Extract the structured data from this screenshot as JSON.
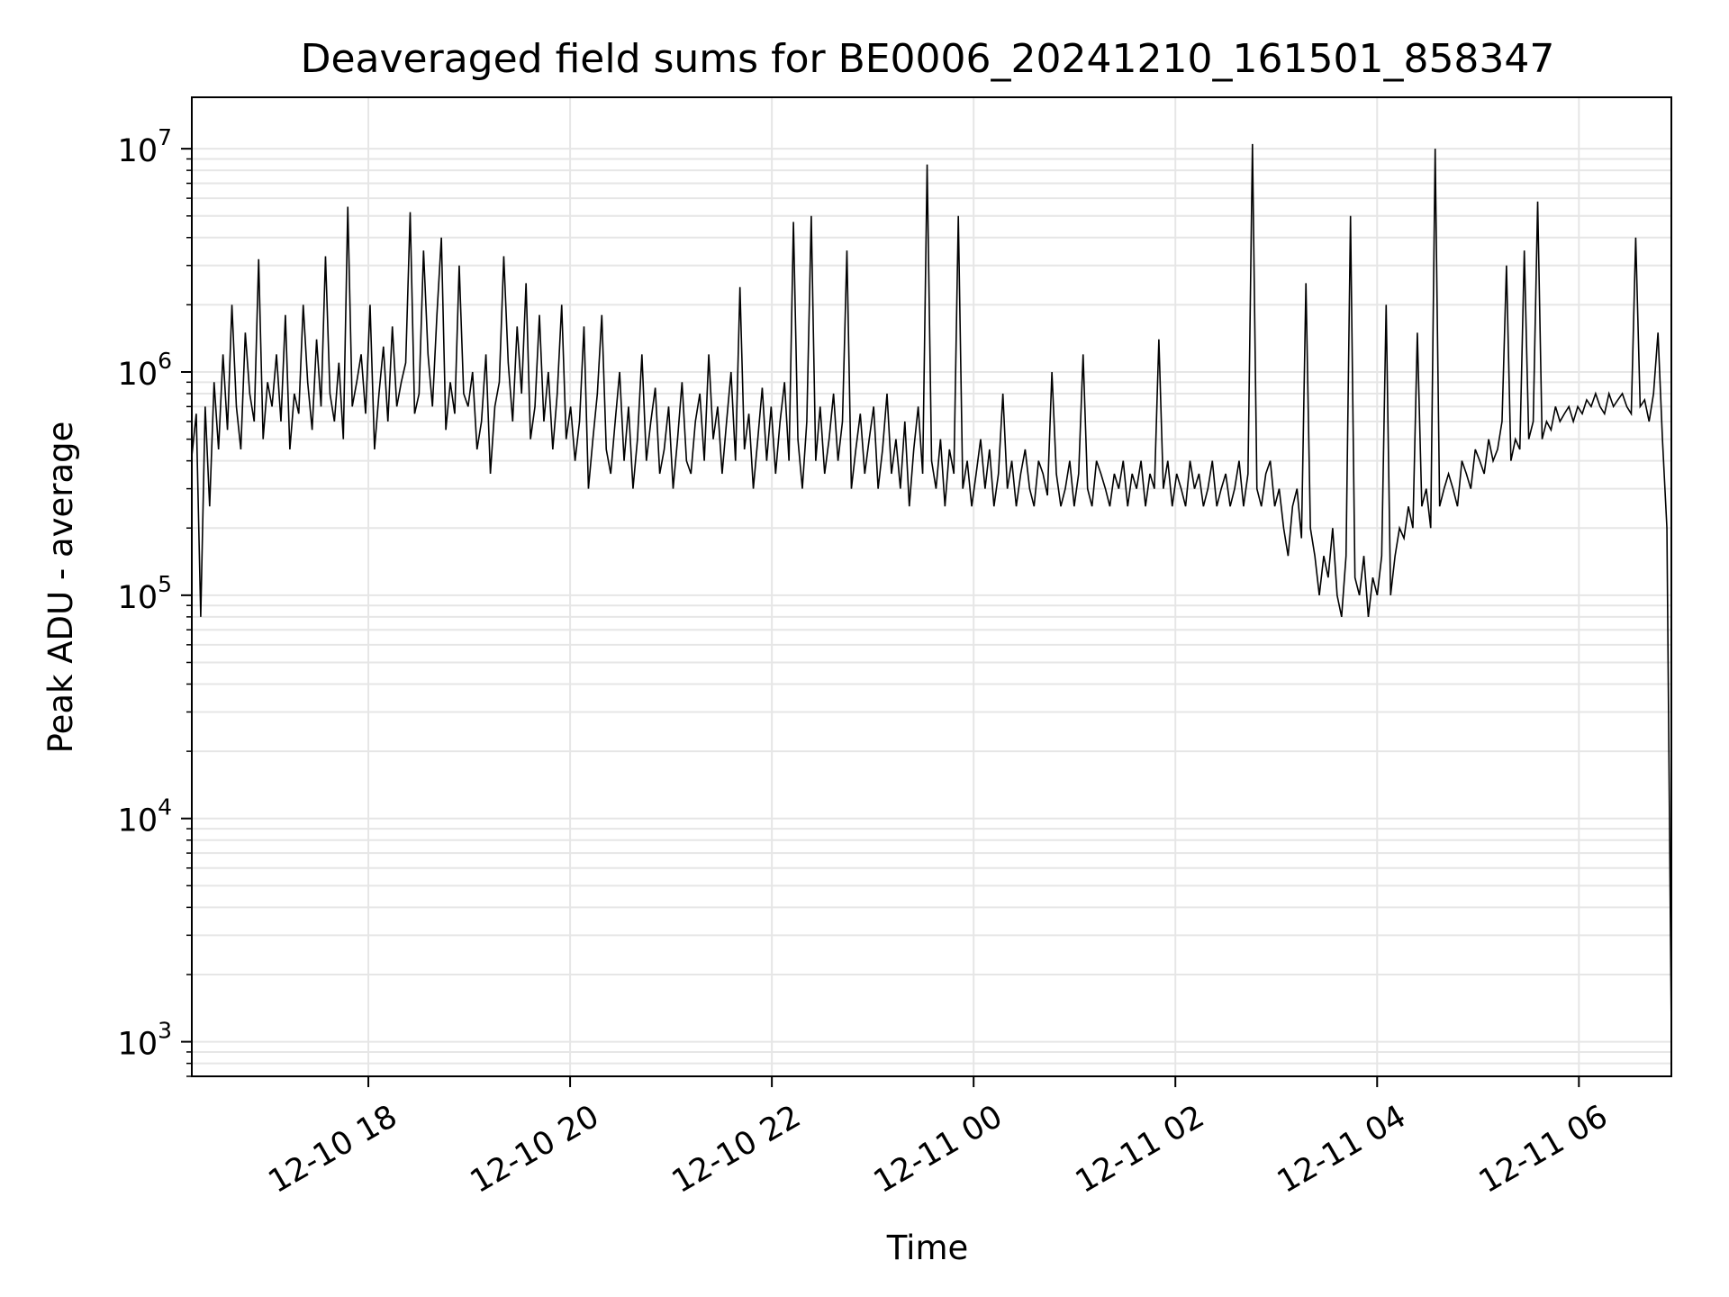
{
  "chart_data": {
    "type": "line",
    "title": "Deaveraged field sums for BE0006_20241210_161501_858347",
    "xlabel": "Time",
    "ylabel": "Peak ADU - average",
    "y_scale": "log",
    "ylim": [
      700,
      17000000
    ],
    "xlim": [
      "2024-12-10 16:15",
      "2024-12-11 06:55"
    ],
    "grid": true,
    "line_color": "#000000",
    "grid_color": "#e6e6e6",
    "x_ticks": [
      {
        "t": "2024-12-10 18:00",
        "label": "12-10 18"
      },
      {
        "t": "2024-12-10 20:00",
        "label": "12-10 20"
      },
      {
        "t": "2024-12-10 22:00",
        "label": "12-10 22"
      },
      {
        "t": "2024-12-11 00:00",
        "label": "12-11 00"
      },
      {
        "t": "2024-12-11 02:00",
        "label": "12-11 02"
      },
      {
        "t": "2024-12-11 04:00",
        "label": "12-11 04"
      },
      {
        "t": "2024-12-11 06:00",
        "label": "12-11 06"
      }
    ],
    "y_ticks": [
      {
        "value": 1000,
        "base": "10",
        "exp": "3"
      },
      {
        "value": 10000,
        "base": "10",
        "exp": "4"
      },
      {
        "value": 100000,
        "base": "10",
        "exp": "5"
      },
      {
        "value": 1000000,
        "base": "10",
        "exp": "6"
      },
      {
        "value": 10000000,
        "base": "10",
        "exp": "7"
      }
    ],
    "series": [
      {
        "x_start": "2024-12-10 16:15",
        "x_end": "2024-12-11 06:55",
        "values": [
          420000,
          650000,
          80000,
          700000,
          250000,
          900000,
          450000,
          1200000,
          550000,
          2000000,
          700000,
          450000,
          1500000,
          800000,
          600000,
          3200000,
          500000,
          900000,
          700000,
          1200000,
          600000,
          1800000,
          450000,
          800000,
          650000,
          2000000,
          900000,
          550000,
          1400000,
          700000,
          3300000,
          800000,
          600000,
          1100000,
          500000,
          5500000,
          700000,
          900000,
          1200000,
          650000,
          2000000,
          450000,
          800000,
          1300000,
          600000,
          1600000,
          700000,
          900000,
          1100000,
          5200000,
          650000,
          800000,
          3500000,
          1200000,
          700000,
          1800000,
          4000000,
          550000,
          900000,
          650000,
          3000000,
          800000,
          700000,
          1000000,
          450000,
          600000,
          1200000,
          350000,
          700000,
          900000,
          3300000,
          1100000,
          600000,
          1600000,
          800000,
          2500000,
          500000,
          700000,
          1800000,
          600000,
          1000000,
          450000,
          800000,
          2000000,
          500000,
          700000,
          400000,
          600000,
          1600000,
          300000,
          500000,
          800000,
          1800000,
          450000,
          350000,
          600000,
          1000000,
          400000,
          700000,
          300000,
          500000,
          1200000,
          400000,
          600000,
          850000,
          350000,
          450000,
          700000,
          300000,
          500000,
          900000,
          400000,
          350000,
          600000,
          800000,
          400000,
          1200000,
          500000,
          700000,
          350000,
          600000,
          1000000,
          400000,
          2400000,
          450000,
          650000,
          300000,
          500000,
          850000,
          400000,
          700000,
          350000,
          600000,
          900000,
          400000,
          4700000,
          500000,
          300000,
          600000,
          5000000,
          400000,
          700000,
          350000,
          500000,
          800000,
          400000,
          600000,
          3500000,
          300000,
          450000,
          650000,
          350000,
          500000,
          700000,
          300000,
          450000,
          800000,
          350000,
          500000,
          300000,
          600000,
          250000,
          450000,
          700000,
          350000,
          8500000,
          400000,
          300000,
          500000,
          250000,
          450000,
          350000,
          5000000,
          300000,
          400000,
          250000,
          350000,
          500000,
          300000,
          450000,
          250000,
          350000,
          800000,
          300000,
          400000,
          250000,
          350000,
          450000,
          300000,
          250000,
          400000,
          350000,
          280000,
          1000000,
          350000,
          250000,
          300000,
          400000,
          250000,
          350000,
          1200000,
          300000,
          250000,
          400000,
          350000,
          300000,
          250000,
          350000,
          300000,
          400000,
          250000,
          350000,
          300000,
          400000,
          250000,
          350000,
          300000,
          1400000,
          300000,
          400000,
          250000,
          350000,
          300000,
          250000,
          400000,
          300000,
          350000,
          250000,
          300000,
          400000,
          250000,
          300000,
          350000,
          250000,
          300000,
          400000,
          250000,
          350000,
          10500000,
          300000,
          250000,
          350000,
          400000,
          250000,
          300000,
          200000,
          150000,
          250000,
          300000,
          180000,
          2500000,
          200000,
          150000,
          100000,
          150000,
          120000,
          200000,
          100000,
          80000,
          150000,
          5000000,
          120000,
          100000,
          150000,
          80000,
          120000,
          100000,
          150000,
          2000000,
          100000,
          150000,
          200000,
          180000,
          250000,
          200000,
          1500000,
          250000,
          300000,
          200000,
          10000000,
          250000,
          300000,
          350000,
          300000,
          250000,
          400000,
          350000,
          300000,
          450000,
          400000,
          350000,
          500000,
          400000,
          450000,
          600000,
          3000000,
          400000,
          500000,
          450000,
          3500000,
          500000,
          600000,
          5800000,
          500000,
          600000,
          550000,
          700000,
          600000,
          650000,
          700000,
          600000,
          700000,
          650000,
          750000,
          700000,
          800000,
          700000,
          650000,
          800000,
          700000,
          750000,
          800000,
          700000,
          650000,
          4000000,
          700000,
          750000,
          600000,
          800000,
          1500000,
          500000,
          200000,
          1100
        ]
      }
    ]
  }
}
